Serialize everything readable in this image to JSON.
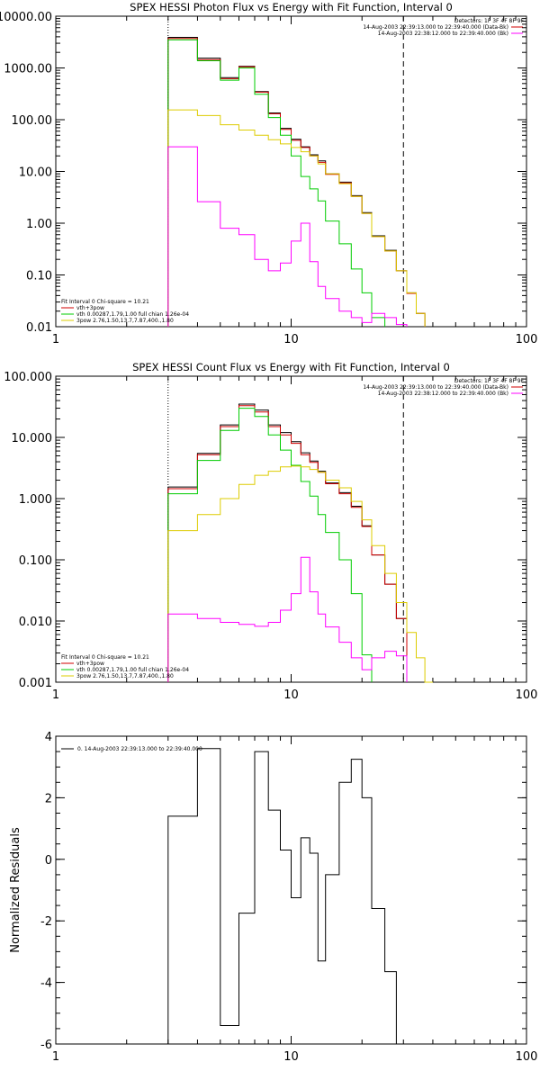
{
  "chart_data": [
    {
      "type": "step-line",
      "title": "SPEX HESSI Photon Flux vs Energy with Fit Function, Interval 0",
      "xscale": "log",
      "yscale": "log",
      "xlim": [
        1,
        100
      ],
      "ylim": [
        0.01,
        10000
      ],
      "xticks": [
        {
          "v": 1,
          "label": "1"
        },
        {
          "v": 10,
          "label": "10"
        },
        {
          "v": 100,
          "label": "100"
        }
      ],
      "yticks": [
        {
          "v": 0.01,
          "label": "0.01"
        },
        {
          "v": 0.1,
          "label": "0.10"
        },
        {
          "v": 1,
          "label": "1.00"
        },
        {
          "v": 10,
          "label": "10.00"
        },
        {
          "v": 100,
          "label": "100.00"
        },
        {
          "v": 1000,
          "label": "1000.00"
        },
        {
          "v": 10000,
          "label": "10000.00"
        }
      ],
      "vlines": [
        {
          "x": 3,
          "style": "dotted"
        },
        {
          "x": 30,
          "style": "dashed"
        }
      ],
      "header": [
        "Detectors: 1F 3F 4F 8F 9F",
        "14-Aug-2003 22:39:13.000 to 22:39:40.000 (Data-Bk)",
        "14-Aug-2003 22:38:12.000 to 22:39:40.000 (Bk)"
      ],
      "header_colors": [
        "",
        "#d00000",
        "#ff00ff"
      ],
      "fit_info": [
        "Fit Interval 0    Chi-square = 10.21",
        "vth+3pow",
        "vth 0.00287,1.79,1.00  full chian 1.26e-04",
        "3pow 2.76,1.50,13.7,7.87,400.,1.80"
      ],
      "fit_colors": [
        "",
        "#d00000",
        "#00cc00",
        "#ddcc00"
      ],
      "edges": [
        3,
        4,
        5,
        6,
        7,
        8,
        9,
        10,
        11,
        12,
        13,
        14,
        16,
        18,
        20,
        22,
        25,
        28,
        31,
        34,
        37,
        40
      ],
      "series": [
        {
          "color": "#000000",
          "values": [
            3900,
            1550,
            650,
            1080,
            350,
            135,
            68,
            42,
            30,
            21,
            16,
            9,
            6.2,
            3.4,
            1.6,
            0.57,
            0.3,
            0.12,
            0.045,
            0.018,
            null
          ]
        },
        {
          "color": "#d00000",
          "values": [
            3700,
            1450,
            620,
            1050,
            340,
            130,
            65,
            40,
            29,
            20,
            15,
            8.8,
            6,
            3.3,
            1.55,
            0.55,
            0.29,
            0.12,
            0.044,
            0.018,
            null
          ]
        },
        {
          "color": "#00cc00",
          "values": [
            3500,
            1380,
            580,
            1000,
            310,
            110,
            50,
            20,
            8,
            4.6,
            2.7,
            1.1,
            0.4,
            0.13,
            0.045,
            0.015,
            null,
            null,
            null,
            null,
            null
          ]
        },
        {
          "color": "#ddcc00",
          "values": [
            155,
            120,
            80,
            63,
            50,
            41,
            34,
            29,
            24,
            20,
            14,
            9,
            5.8,
            3.3,
            1.55,
            0.55,
            0.29,
            0.12,
            0.045,
            0.018,
            0.009
          ]
        },
        {
          "color": "#ff00ff",
          "values": [
            30,
            2.6,
            0.8,
            0.6,
            0.2,
            0.12,
            0.17,
            0.45,
            1.0,
            0.18,
            0.06,
            0.035,
            0.02,
            0.015,
            0.012,
            0.018,
            0.015,
            0.011,
            null,
            null,
            null
          ]
        }
      ]
    },
    {
      "type": "step-line",
      "title": "SPEX HESSI Count Flux vs Energy with Fit Function, Interval 0",
      "xscale": "log",
      "yscale": "log",
      "xlim": [
        1,
        100
      ],
      "ylim": [
        0.001,
        100
      ],
      "xticks": [
        {
          "v": 1,
          "label": "1"
        },
        {
          "v": 10,
          "label": "10"
        },
        {
          "v": 100,
          "label": "100"
        }
      ],
      "yticks": [
        {
          "v": 0.001,
          "label": "0.001"
        },
        {
          "v": 0.01,
          "label": "0.010"
        },
        {
          "v": 0.1,
          "label": "0.100"
        },
        {
          "v": 1,
          "label": "1.000"
        },
        {
          "v": 10,
          "label": "10.000"
        },
        {
          "v": 100,
          "label": "100.000"
        }
      ],
      "vlines": [
        {
          "x": 3,
          "style": "dotted"
        },
        {
          "x": 30,
          "style": "dashed"
        }
      ],
      "header": [
        "Detectors: 1F 3F 4F 8F 9F",
        "14-Aug-2003 22:39:13.000 to 22:39:40.000 (Data-Bk)",
        "14-Aug-2003 22:38:12.000 to 22:39:40.000 (Bk)"
      ],
      "header_colors": [
        "",
        "#d00000",
        "#ff00ff"
      ],
      "fit_info": [
        "Fit Interval 0    Chi-square = 10.21",
        "vth+3pow",
        "vth 0.00287,1.79,1.00  full chian 1.26e-04",
        "3pow 2.76,1.50,13.7,7.87,400.,1.80"
      ],
      "fit_colors": [
        "",
        "#d00000",
        "#00cc00",
        "#ddcc00"
      ],
      "edges": [
        3,
        4,
        5,
        6,
        7,
        8,
        9,
        10,
        11,
        12,
        13,
        14,
        16,
        18,
        20,
        22,
        25,
        28,
        31,
        34,
        37,
        40
      ],
      "series": [
        {
          "color": "#000000",
          "values": [
            1.55,
            5.5,
            16,
            35,
            28,
            16,
            12,
            8.5,
            5.6,
            4.1,
            2.8,
            1.8,
            1.25,
            0.75,
            0.36,
            0.12,
            0.04,
            0.011,
            null,
            null,
            null
          ]
        },
        {
          "color": "#d00000",
          "values": [
            1.45,
            5.2,
            15,
            33,
            26,
            15,
            11,
            8,
            5.2,
            3.9,
            2.7,
            1.75,
            1.2,
            0.72,
            0.35,
            0.12,
            0.04,
            0.011,
            null,
            null,
            null
          ]
        },
        {
          "color": "#00cc00",
          "values": [
            1.2,
            4.2,
            13,
            30,
            22,
            11,
            6.2,
            3.5,
            1.9,
            1.1,
            0.55,
            0.28,
            0.1,
            0.028,
            0.0028,
            null,
            null,
            null,
            null,
            null,
            null
          ]
        },
        {
          "color": "#ddcc00",
          "values": [
            0.3,
            0.55,
            1.0,
            1.7,
            2.4,
            2.8,
            3.3,
            3.4,
            3.3,
            3.0,
            2.7,
            2.0,
            1.5,
            0.9,
            0.45,
            0.17,
            0.06,
            0.02,
            0.0065,
            0.0025,
            0.001
          ]
        },
        {
          "color": "#ff00ff",
          "values": [
            0.013,
            0.011,
            0.0095,
            0.0088,
            0.0082,
            0.0095,
            0.015,
            0.028,
            0.11,
            0.03,
            0.013,
            0.008,
            0.0045,
            0.0025,
            0.0016,
            0.0025,
            0.0032,
            0.0027,
            null,
            null,
            null
          ]
        }
      ]
    },
    {
      "type": "step-line",
      "title": "",
      "xscale": "log",
      "yscale": "linear",
      "xlim": [
        1,
        100
      ],
      "ylim": [
        -6,
        4
      ],
      "xticks": [
        {
          "v": 1,
          "label": "1"
        },
        {
          "v": 10,
          "label": "10"
        },
        {
          "v": 100,
          "label": "100"
        }
      ],
      "yticks": [
        {
          "v": -6,
          "label": "-6"
        },
        {
          "v": -4,
          "label": "-4"
        },
        {
          "v": -2,
          "label": "-2"
        },
        {
          "v": 0,
          "label": "0"
        },
        {
          "v": 2,
          "label": "2"
        },
        {
          "v": 4,
          "label": "4"
        }
      ],
      "ylabel": "Normalized Residuals",
      "legend": [
        {
          "label": "0. 14-Aug-2003 22:39:13.000 to 22:39:40.000",
          "color": "#000000"
        }
      ],
      "edges": [
        3,
        4,
        5,
        6,
        7,
        8,
        9,
        10,
        11,
        12,
        13,
        14,
        16,
        18,
        20,
        22,
        25,
        28,
        31
      ],
      "series": [
        {
          "color": "#000000",
          "values": [
            1.4,
            3.6,
            -5.4,
            -1.75,
            3.5,
            1.6,
            0.3,
            -1.25,
            0.7,
            0.2,
            -3.3,
            -0.5,
            2.5,
            3.25,
            2.0,
            -1.6,
            -3.65,
            -6.0
          ]
        }
      ]
    }
  ]
}
